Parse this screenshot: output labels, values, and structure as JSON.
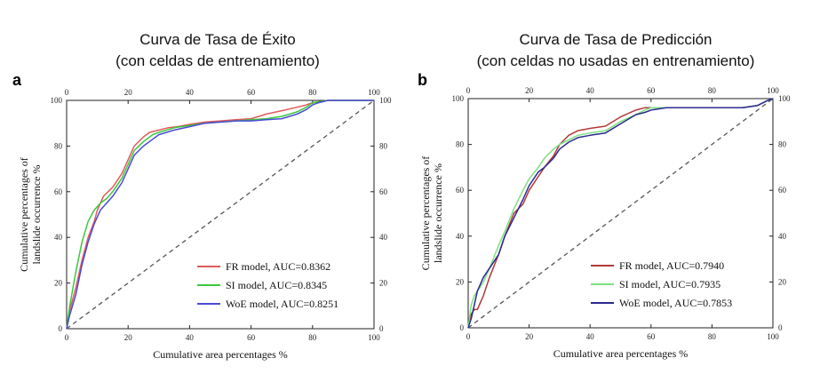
{
  "titles": {
    "a": {
      "line1": "Curva de Tasa de Éxito",
      "line2": "(con celdas de entrenamiento)"
    },
    "b": {
      "line1": "Curva de Tasa de Predicción",
      "line2": "(con celdas no usadas en entrenamiento)"
    }
  },
  "chart_data": [
    {
      "panel": "a",
      "type": "line",
      "xlabel": "Cumulative area percentages %",
      "ylabel": [
        "Cumulative percentages of",
        "landslide occurrence %"
      ],
      "xlim": [
        0,
        100
      ],
      "ylim": [
        0,
        100
      ],
      "xticks": [
        0,
        20,
        40,
        60,
        80,
        100
      ],
      "yticks": [
        0,
        20,
        40,
        60,
        80,
        100
      ],
      "diagonal": true,
      "legend_position": "bottom-right",
      "series": [
        {
          "name": "FR model, AUC=0.8362",
          "color": "#e05a5a",
          "x": [
            0,
            1,
            3,
            5,
            7,
            9,
            10,
            12,
            15,
            18,
            20,
            22,
            25,
            27,
            30,
            33,
            36,
            40,
            45,
            50,
            55,
            60,
            65,
            70,
            75,
            78,
            80,
            85,
            90,
            100
          ],
          "y": [
            0,
            8,
            18,
            30,
            40,
            47,
            52,
            58,
            62,
            68,
            74,
            80,
            84,
            86,
            87,
            88,
            88.5,
            89.5,
            90.5,
            91,
            91.5,
            92,
            94,
            95.5,
            97,
            98,
            99,
            100,
            100,
            100
          ]
        },
        {
          "name": "SI model, AUC=0.8345",
          "color": "#3cc73c",
          "x": [
            0,
            1,
            3,
            5,
            7,
            9,
            11,
            13,
            15,
            18,
            20,
            22,
            25,
            28,
            30,
            35,
            40,
            45,
            50,
            55,
            60,
            65,
            70,
            75,
            78,
            80,
            85,
            90,
            100
          ],
          "y": [
            0,
            10,
            25,
            38,
            47,
            52,
            55,
            57,
            60,
            66,
            72,
            78,
            82,
            85,
            86,
            88,
            89,
            90,
            90.5,
            91,
            91.5,
            92,
            93,
            95,
            97,
            99,
            100,
            100,
            100
          ]
        },
        {
          "name": "WoE model, AUC=0.8251",
          "color": "#4a4ad8",
          "x": [
            0,
            1,
            3,
            5,
            7,
            9,
            11,
            13,
            15,
            18,
            20,
            22,
            25,
            28,
            30,
            35,
            40,
            45,
            50,
            55,
            60,
            65,
            70,
            75,
            78,
            80,
            82,
            85,
            88,
            100
          ],
          "y": [
            0,
            6,
            15,
            28,
            38,
            46,
            52,
            55,
            58,
            64,
            70,
            76,
            80,
            83,
            85,
            87,
            88.5,
            90,
            90.5,
            91,
            91,
            91.5,
            92,
            94,
            96,
            98,
            99,
            100,
            100,
            100
          ]
        }
      ]
    },
    {
      "panel": "b",
      "type": "line",
      "xlabel": "Cumulative area percentages %",
      "ylabel": [
        "Cumulative percentages of",
        "landslide occurrence %"
      ],
      "xlim": [
        0,
        100
      ],
      "ylim": [
        0,
        100
      ],
      "xticks": [
        0,
        20,
        40,
        60,
        80,
        100
      ],
      "yticks": [
        0,
        20,
        40,
        60,
        80,
        100
      ],
      "diagonal": true,
      "legend_position": "bottom-right",
      "series": [
        {
          "name": "FR model, AUC=0.7940",
          "color": "#b03a3a",
          "x": [
            0,
            1,
            2,
            3,
            5,
            7,
            10,
            12,
            15,
            18,
            20,
            23,
            25,
            28,
            30,
            33,
            36,
            40,
            45,
            50,
            55,
            58,
            60,
            65,
            70,
            80,
            90,
            95,
            98,
            100
          ],
          "y": [
            0,
            6,
            8,
            8,
            14,
            22,
            32,
            40,
            50,
            54,
            60,
            66,
            70,
            75,
            80,
            84,
            86,
            87,
            88,
            92,
            95,
            96,
            96,
            96,
            96,
            96,
            96,
            97,
            99,
            100
          ]
        },
        {
          "name": "SI model, AUC=0.7935",
          "color": "#7ee07e",
          "x": [
            0,
            1,
            2,
            3,
            5,
            7,
            10,
            12,
            15,
            18,
            20,
            23,
            25,
            28,
            30,
            33,
            36,
            40,
            45,
            50,
            55,
            58,
            60,
            65,
            70,
            80,
            90,
            95,
            98,
            100
          ],
          "y": [
            0,
            10,
            14,
            16,
            20,
            26,
            36,
            42,
            52,
            60,
            65,
            70,
            74,
            78,
            80,
            82,
            84,
            85,
            86,
            90,
            93,
            95,
            96,
            96,
            96,
            96,
            96,
            97,
            99,
            100
          ]
        },
        {
          "name": "WoE model, AUC=0.7853",
          "color": "#2a2a90",
          "x": [
            0,
            1,
            2,
            3,
            5,
            7,
            10,
            12,
            15,
            18,
            20,
            23,
            25,
            28,
            30,
            33,
            36,
            40,
            45,
            50,
            55,
            58,
            60,
            65,
            70,
            80,
            90,
            95,
            98,
            100
          ],
          "y": [
            0,
            4,
            10,
            16,
            22,
            26,
            32,
            40,
            48,
            56,
            62,
            68,
            70,
            74,
            78,
            81,
            83,
            84,
            85,
            89,
            93,
            94,
            95,
            96,
            96,
            96,
            96,
            97,
            99,
            100
          ]
        }
      ]
    }
  ],
  "colors": {
    "axis": "#222222",
    "diagonal": "#555555"
  }
}
